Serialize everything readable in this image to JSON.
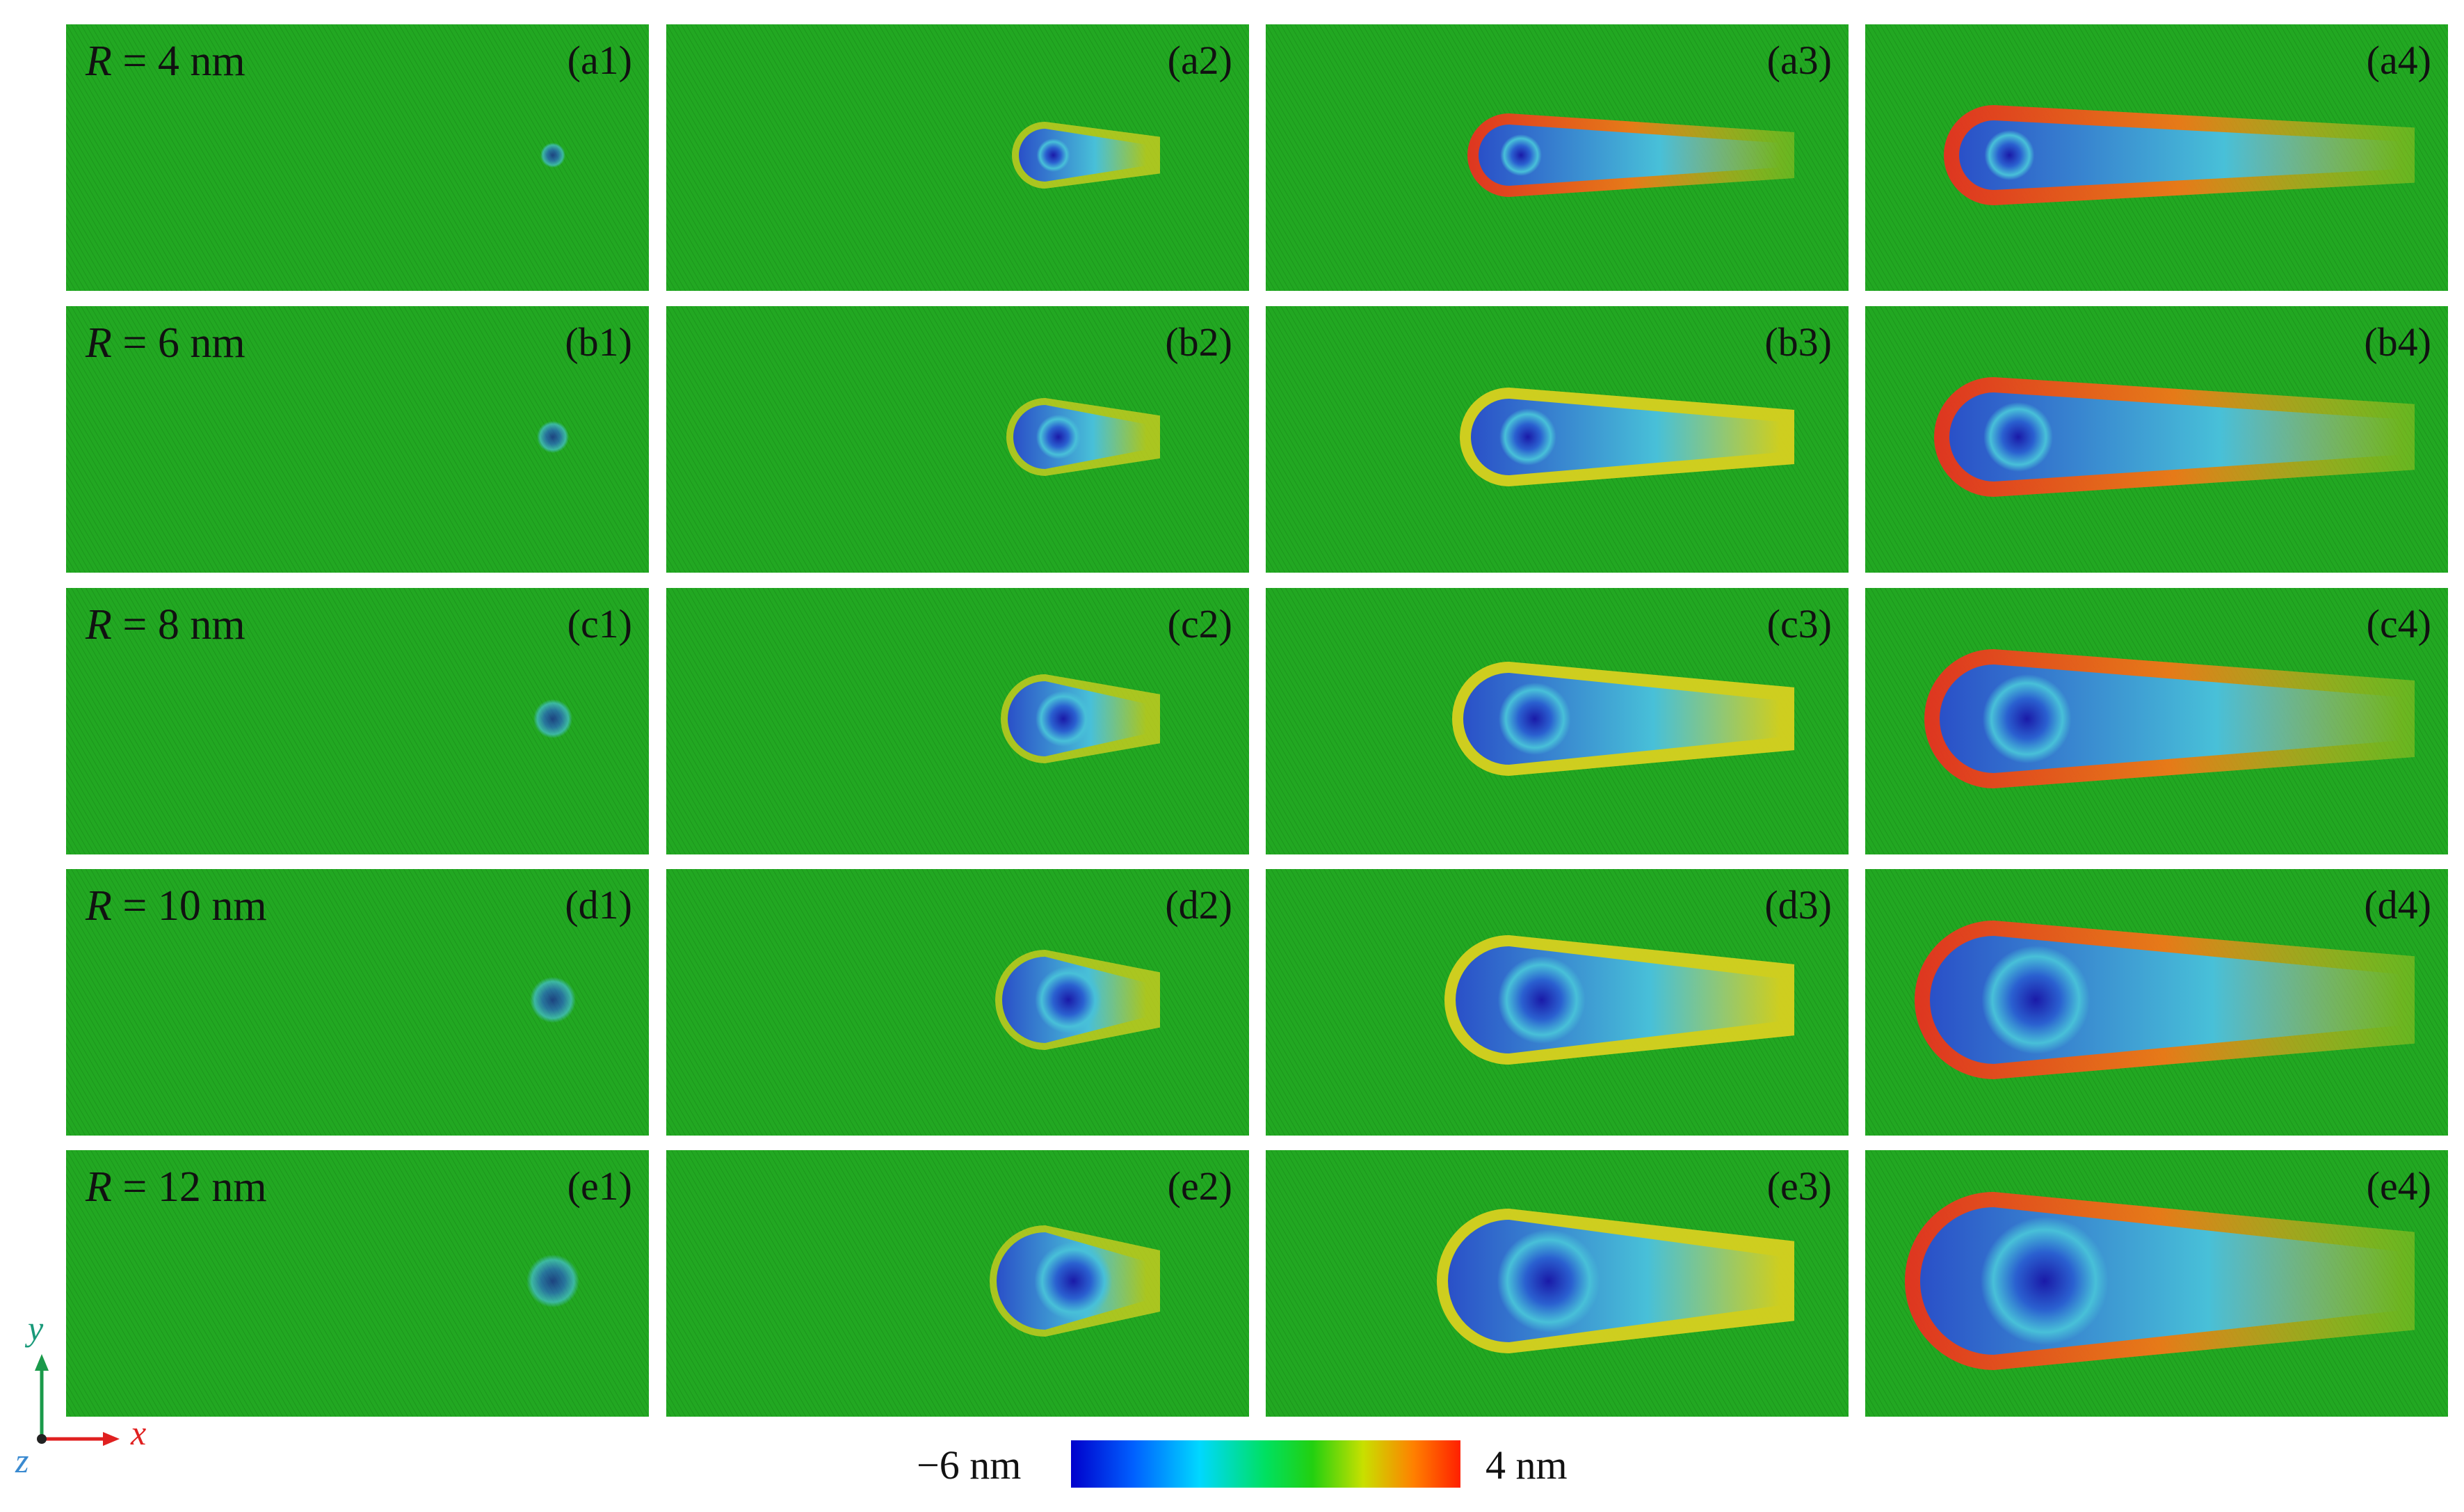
{
  "rows": [
    {
      "r_label": "R",
      "r_value": " = 4 nm",
      "panels": [
        "(a1)",
        "(a2)",
        "(a3)",
        "(a4)"
      ]
    },
    {
      "r_label": "R",
      "r_value": " = 6 nm",
      "panels": [
        "(b1)",
        "(b2)",
        "(b3)",
        "(b4)"
      ]
    },
    {
      "r_label": "R",
      "r_value": " = 8 nm",
      "panels": [
        "(c1)",
        "(c2)",
        "(c3)",
        "(c4)"
      ]
    },
    {
      "r_label": "R",
      "r_value": " = 10 nm",
      "panels": [
        "(d1)",
        "(d2)",
        "(d3)",
        "(d4)"
      ]
    },
    {
      "r_label": "R",
      "r_value": " = 12 nm",
      "panels": [
        "(e1)",
        "(e2)",
        "(e3)",
        "(e4)"
      ]
    }
  ],
  "colorbar": {
    "min_label": "−6 nm",
    "max_label": "4 nm"
  },
  "axes": {
    "y": "y",
    "x": "x",
    "z": "z"
  },
  "colors": {
    "background_green": "#22a822",
    "deep_blue": "#1a1aa8",
    "cyan": "#48c0d8",
    "red": "#e83020",
    "orange": "#f07818",
    "yellow": "#d8d020"
  }
}
